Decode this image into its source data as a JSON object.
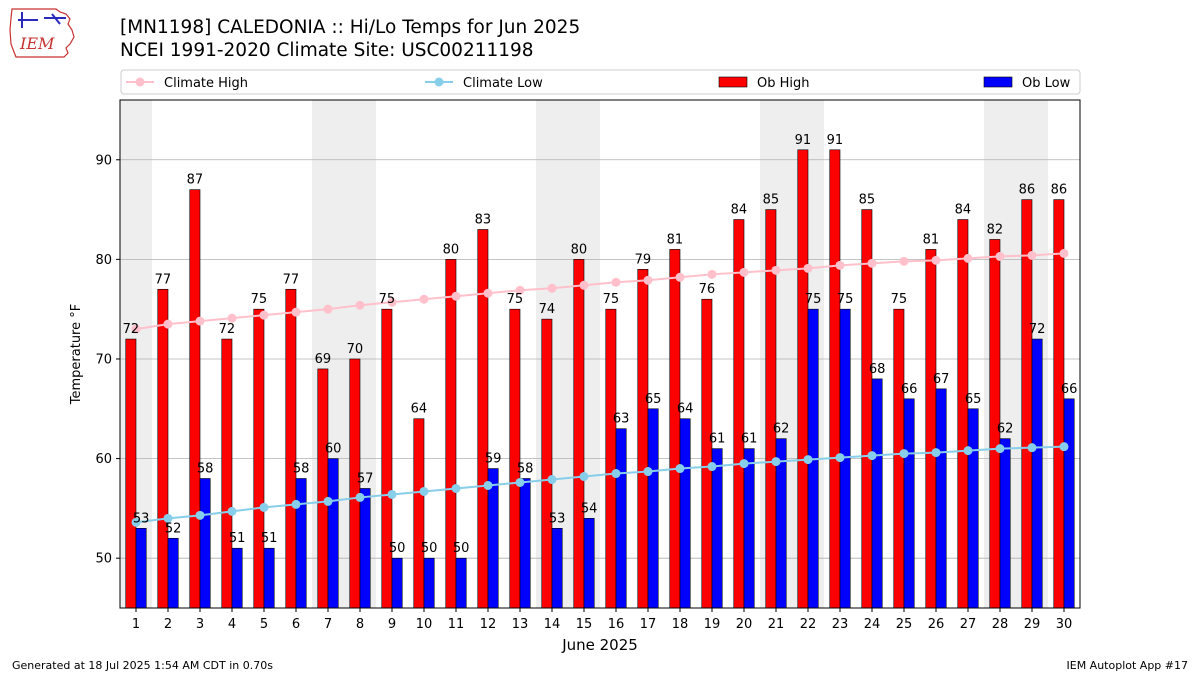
{
  "header": {
    "title_line1": "[MN1198] CALEDONIA :: Hi/Lo Temps for Jun 2025",
    "title_line2": "NCEI 1991-2020 Climate Site: USC00211198",
    "logo_text": "IEM"
  },
  "footer": {
    "generated": "Generated at 18 Jul 2025 1:54 AM CDT in 0.70s",
    "app": "IEM Autoplot App #17"
  },
  "colors": {
    "ob_high": "#ff0000",
    "ob_low": "#0000ff",
    "climate_high": "#ffc0cb",
    "climate_low": "#87ceeb",
    "weekend_band": "#eeeeee",
    "grid": "#b0b0b0"
  },
  "chart_data": {
    "type": "bar",
    "xlabel": "June 2025",
    "ylabel": "Temperature °F",
    "ylim": [
      45,
      96
    ],
    "xlim": [
      0.5,
      30.5
    ],
    "yticks": [
      50,
      60,
      70,
      80,
      90
    ],
    "grid": "horizontal",
    "legend_position": "top",
    "legend": [
      "Climate High",
      "Climate Low",
      "Ob High",
      "Ob Low"
    ],
    "categories": [
      "1",
      "2",
      "3",
      "4",
      "5",
      "6",
      "7",
      "8",
      "9",
      "10",
      "11",
      "12",
      "13",
      "14",
      "15",
      "16",
      "17",
      "18",
      "19",
      "20",
      "21",
      "22",
      "23",
      "24",
      "25",
      "26",
      "27",
      "28",
      "29",
      "30"
    ],
    "weekend_days": [
      1,
      7,
      8,
      14,
      15,
      21,
      22,
      28,
      29
    ],
    "series": [
      {
        "name": "Ob High",
        "type": "bar",
        "values": [
          72,
          77,
          87,
          72,
          75,
          77,
          69,
          70,
          75,
          64,
          80,
          83,
          75,
          74,
          80,
          75,
          79,
          81,
          76,
          84,
          85,
          91,
          91,
          85,
          75,
          81,
          84,
          82,
          86,
          86
        ]
      },
      {
        "name": "Ob Low",
        "type": "bar",
        "values": [
          53,
          52,
          58,
          51,
          51,
          58,
          60,
          57,
          50,
          50,
          50,
          59,
          58,
          53,
          54,
          63,
          65,
          64,
          61,
          61,
          62,
          75,
          75,
          68,
          66,
          67,
          65,
          62,
          72,
          66
        ]
      },
      {
        "name": "Climate High",
        "type": "line",
        "values": [
          73.0,
          73.5,
          73.8,
          74.1,
          74.4,
          74.7,
          75.0,
          75.4,
          75.7,
          76.0,
          76.3,
          76.6,
          76.9,
          77.1,
          77.4,
          77.7,
          77.9,
          78.2,
          78.5,
          78.7,
          78.9,
          79.1,
          79.4,
          79.6,
          79.8,
          79.9,
          80.1,
          80.3,
          80.4,
          80.6
        ]
      },
      {
        "name": "Climate Low",
        "type": "line",
        "values": [
          53.6,
          54.0,
          54.3,
          54.7,
          55.1,
          55.4,
          55.7,
          56.1,
          56.4,
          56.7,
          57.0,
          57.3,
          57.6,
          57.9,
          58.2,
          58.5,
          58.7,
          59.0,
          59.2,
          59.5,
          59.7,
          59.9,
          60.1,
          60.3,
          60.5,
          60.6,
          60.8,
          61.0,
          61.1,
          61.2
        ]
      }
    ]
  }
}
